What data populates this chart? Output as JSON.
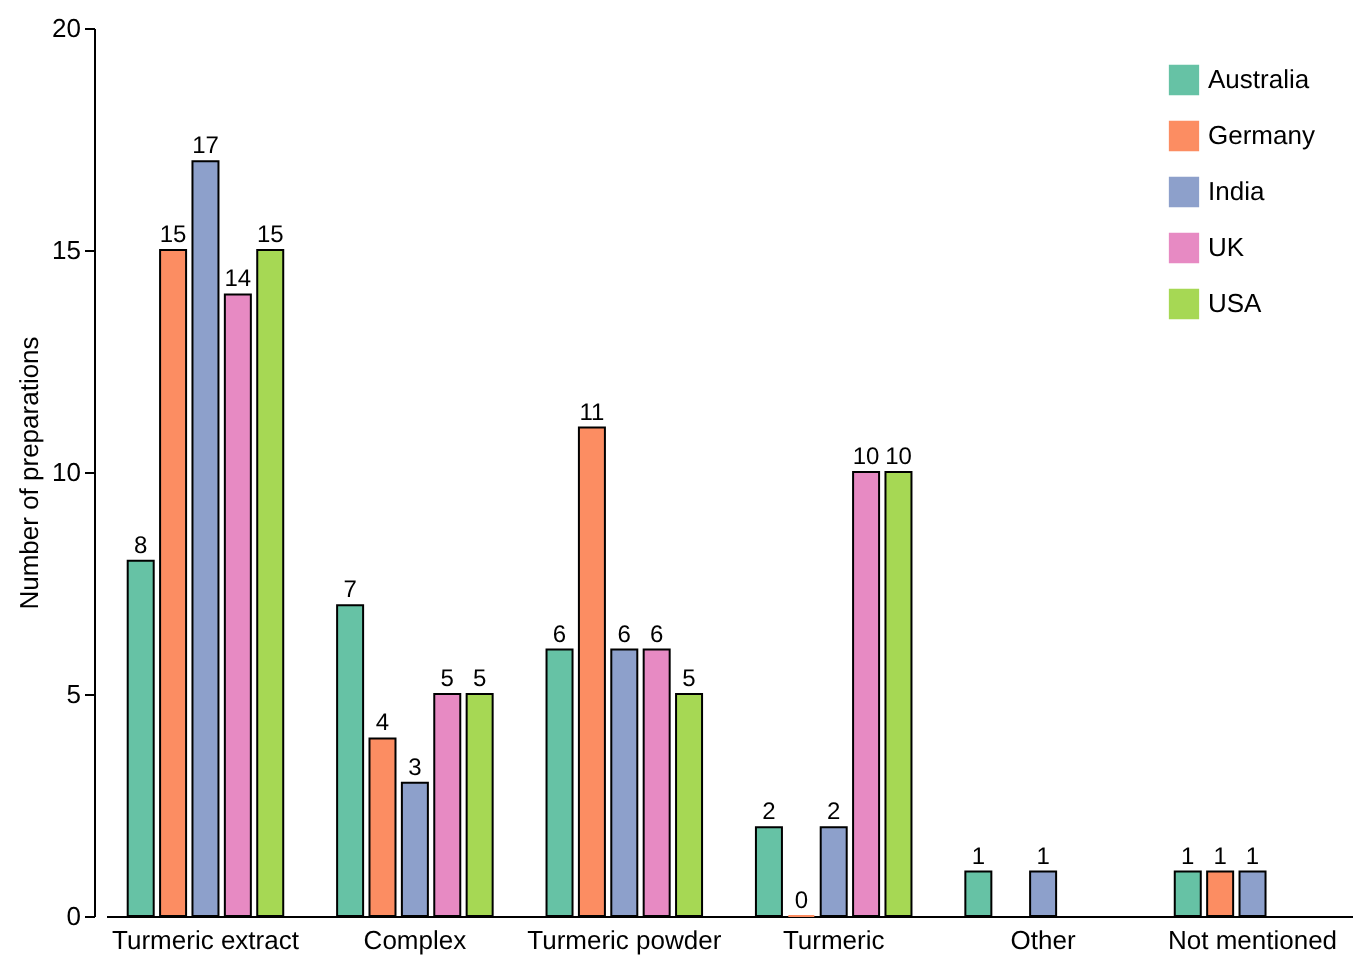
{
  "chart_data": {
    "type": "bar",
    "ylabel": "Number of preparations",
    "categories": [
      "Turmeric extract",
      "Complex",
      "Turmeric powder",
      "Turmeric",
      "Other",
      "Not mentioned"
    ],
    "series": [
      {
        "name": "Australia",
        "color": "#66c2a5",
        "values": [
          8,
          7,
          6,
          2,
          1,
          1
        ]
      },
      {
        "name": "Germany",
        "color": "#fc8d62",
        "values": [
          15,
          4,
          11,
          0,
          null,
          1
        ]
      },
      {
        "name": "India",
        "color": "#8da0cb",
        "values": [
          17,
          3,
          6,
          2,
          1,
          1
        ]
      },
      {
        "name": "UK",
        "color": "#e78ac3",
        "values": [
          14,
          5,
          6,
          10,
          null,
          null
        ]
      },
      {
        "name": "USA",
        "color": "#a6d854",
        "values": [
          15,
          5,
          5,
          10,
          null,
          null
        ]
      }
    ],
    "ylim": [
      0,
      20
    ],
    "yticks": [
      0,
      5,
      10,
      15,
      20
    ],
    "grid": false,
    "legend": "top right",
    "data_labels": true
  }
}
